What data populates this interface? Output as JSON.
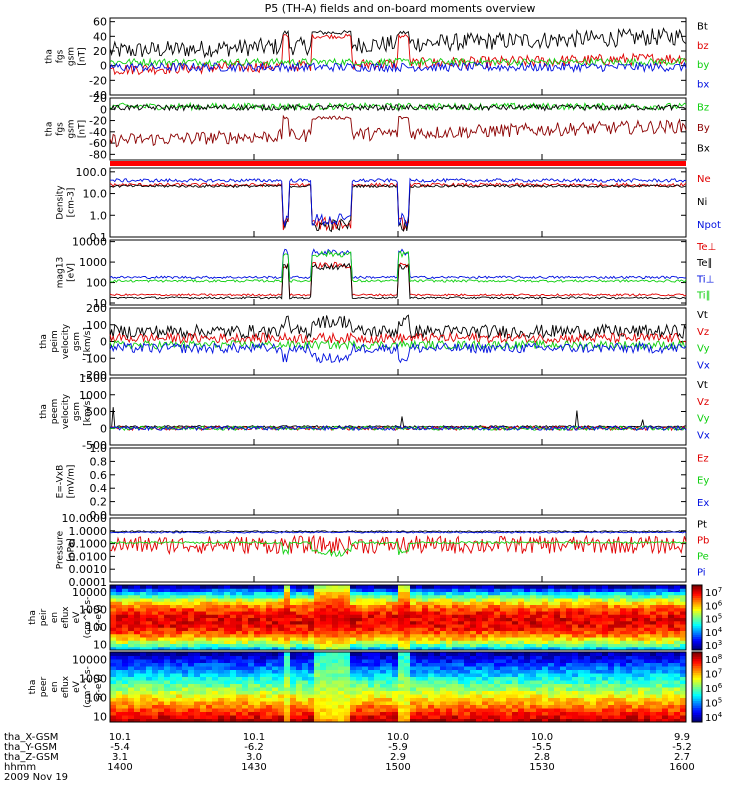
{
  "title": "P5 (TH-A) fields and on-board moments overview",
  "colors": {
    "black": "#000000",
    "red": "#e00000",
    "green": "#10d010",
    "blue": "#0010e0",
    "darkred": "#8b0000"
  },
  "chart_data": [
    {
      "type": "line",
      "id": "fgs_gsm",
      "ylabel": [
        "tha",
        "fgs",
        "gsm",
        "[nT]"
      ],
      "ylim": [
        -40,
        65
      ],
      "yticks": [
        60,
        40,
        20,
        0,
        -20,
        -40
      ],
      "series": [
        {
          "name": "Bt",
          "color": "black"
        },
        {
          "name": "bz",
          "color": "red"
        },
        {
          "name": "by",
          "color": "green"
        },
        {
          "name": "bx",
          "color": "blue"
        }
      ]
    },
    {
      "type": "line",
      "id": "fgs_gsm_sm",
      "ylabel": [
        "tha",
        "fgs",
        "gsm",
        "[nT]"
      ],
      "ylim": [
        -90,
        20
      ],
      "yticks": [
        20,
        0,
        -20,
        -40,
        -60,
        -80
      ],
      "series": [
        {
          "name": "Bz",
          "color": "green"
        },
        {
          "name": "By",
          "color": "darkred"
        },
        {
          "name": "Bx",
          "color": "black"
        }
      ]
    },
    {
      "type": "line",
      "id": "density",
      "log": true,
      "ylabel": [
        "Density",
        "[cm-3]"
      ],
      "ylim": [
        0.1,
        150
      ],
      "yticks": [
        "100.0",
        "10.0",
        "1.0",
        "0.1"
      ],
      "ytickvals": [
        100,
        10,
        1,
        0.1
      ],
      "series": [
        {
          "name": "Ne",
          "color": "red"
        },
        {
          "name": "Ni",
          "color": "black"
        },
        {
          "name": "Npot",
          "color": "blue"
        }
      ]
    },
    {
      "type": "line",
      "id": "temperature",
      "log": true,
      "ylabel": [
        "mag13",
        "[eV]"
      ],
      "ylim": [
        8,
        12000
      ],
      "yticks": [
        "10000",
        "1000",
        "100",
        "10"
      ],
      "ytickvals": [
        10000,
        1000,
        100,
        10
      ],
      "series": [
        {
          "name": "Te⊥",
          "color": "red"
        },
        {
          "name": "Te∥",
          "color": "black"
        },
        {
          "name": "Ti⊥",
          "color": "blue"
        },
        {
          "name": "Ti∥",
          "color": "green"
        }
      ]
    },
    {
      "type": "line",
      "id": "ion_velocity",
      "ylabel": [
        "tha",
        "peim",
        "velocity",
        "gsm",
        "[km/s]"
      ],
      "ylim": [
        -200,
        200
      ],
      "yticks": [
        200,
        100,
        0,
        -100,
        -200
      ],
      "series": [
        {
          "name": "Vt",
          "color": "black"
        },
        {
          "name": "Vz",
          "color": "red"
        },
        {
          "name": "Vy",
          "color": "green"
        },
        {
          "name": "Vx",
          "color": "blue"
        }
      ]
    },
    {
      "type": "line",
      "id": "electron_velocity",
      "ylabel": [
        "tha",
        "peem",
        "velocity",
        "gsm",
        "[km/s]"
      ],
      "ylim": [
        -500,
        1500
      ],
      "yticks": [
        1500,
        1000,
        500,
        0,
        -500
      ],
      "series": [
        {
          "name": "Vt",
          "color": "black"
        },
        {
          "name": "Vz",
          "color": "red"
        },
        {
          "name": "Vy",
          "color": "green"
        },
        {
          "name": "Vx",
          "color": "blue"
        }
      ]
    },
    {
      "type": "line",
      "id": "efield",
      "ylabel": [
        "E=-VxB",
        "[mV/m]"
      ],
      "ylim": [
        0,
        1
      ],
      "yticks": [
        "1.0",
        "0.8",
        "0.6",
        "0.4",
        "0.2",
        "0.0"
      ],
      "ytickvals": [
        1,
        0.8,
        0.6,
        0.4,
        0.2,
        0
      ],
      "series": [
        {
          "name": "Ez",
          "color": "red"
        },
        {
          "name": "Ey",
          "color": "green"
        },
        {
          "name": "Ex",
          "color": "blue"
        }
      ]
    },
    {
      "type": "line",
      "id": "pressure",
      "log": true,
      "ylabel": [
        "Pressure",
        "[nPa]"
      ],
      "ylim": [
        0.0001,
        10
      ],
      "yticks": [
        "10.0000",
        "1.0000",
        "0.1000",
        "0.0100",
        "0.0010",
        "0.0001"
      ],
      "ytickvals": [
        10,
        1,
        0.1,
        0.01,
        0.001,
        0.0001
      ],
      "series": [
        {
          "name": "Pt",
          "color": "black"
        },
        {
          "name": "Pb",
          "color": "red"
        },
        {
          "name": "Pe",
          "color": "green"
        },
        {
          "name": "Pi",
          "color": "blue"
        }
      ]
    },
    {
      "type": "heatmap",
      "id": "ion_spectrogram",
      "log": true,
      "ylabel": [
        "tha",
        "peir",
        "en",
        "eflux",
        "eV",
        "(cm^2-s-",
        "sr-eV)"
      ],
      "ylim": [
        5,
        25000
      ],
      "yticks": [
        "10000",
        "1000",
        "100",
        "10"
      ],
      "ytickvals": [
        10000,
        1000,
        100,
        10
      ],
      "colorbar_ticks": [
        "10^7",
        "10^6",
        "10^5",
        "10^4",
        "10^3"
      ]
    },
    {
      "type": "heatmap",
      "id": "electron_spectrogram",
      "log": true,
      "ylabel": [
        "tha",
        "peer",
        "en",
        "eflux",
        "eV",
        "(cm^2-s-",
        "sr-eV)"
      ],
      "ylim": [
        5,
        25000
      ],
      "yticks": [
        "10000",
        "1000",
        "100",
        "10"
      ],
      "ytickvals": [
        10000,
        1000,
        100,
        10
      ],
      "colorbar_ticks": [
        "10^8",
        "10^7",
        "10^6",
        "10^5",
        "10^4"
      ]
    }
  ],
  "x_axis": {
    "row_labels": [
      "tha_X-GSM",
      "tha_Y-GSM",
      "tha_Z-GSM",
      "hhmm"
    ],
    "date": "2009 Nov 19",
    "ticks": [
      {
        "x": "10.1",
        "y": "-5.4",
        "z": "3.1",
        "hhmm": "1400"
      },
      {
        "x": "10.1",
        "y": "-6.2",
        "z": "3.0",
        "hhmm": "1430"
      },
      {
        "x": "10.0",
        "y": "-5.9",
        "z": "2.9",
        "hhmm": "1500"
      },
      {
        "x": "10.0",
        "y": "-5.5",
        "z": "2.8",
        "hhmm": "1530"
      },
      {
        "x": "9.9",
        "y": "-5.2",
        "z": "2.7",
        "hhmm": "1600"
      }
    ]
  }
}
